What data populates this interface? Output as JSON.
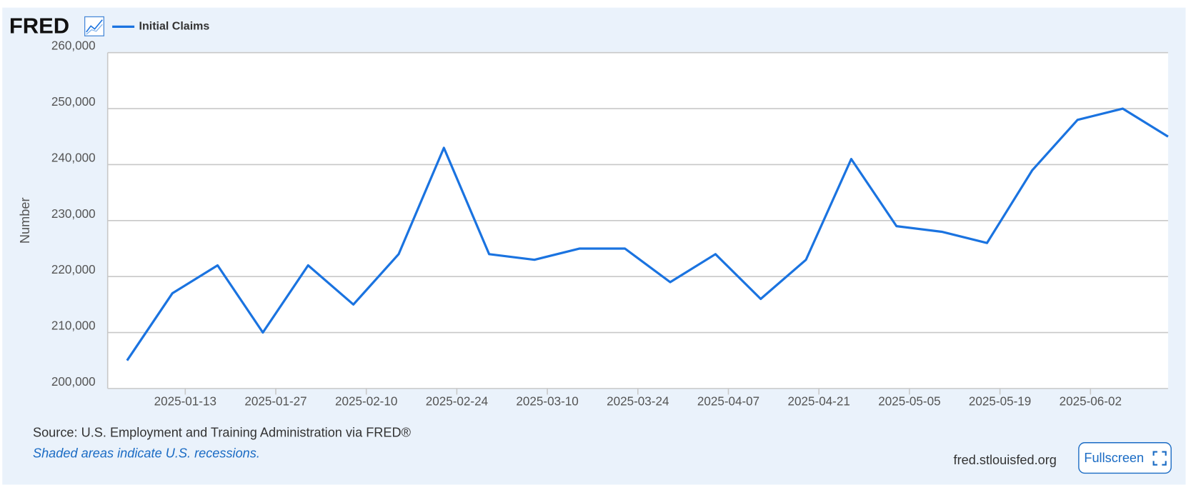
{
  "logo": "FRED",
  "site": "fred.stlouisfed.org",
  "button": "Fullscreen",
  "chart_data": {
    "type": "line",
    "y_label": "Number",
    "source": "Source: U.S. Employment and Training Administration via FRED®",
    "note": "Shaded areas indicate U.S. recessions.",
    "x": [
      "2025-01-04",
      "2025-01-11",
      "2025-01-18",
      "2025-01-25",
      "2025-02-01",
      "2025-02-08",
      "2025-02-15",
      "2025-02-22",
      "2025-03-01",
      "2025-03-08",
      "2025-03-15",
      "2025-03-22",
      "2025-03-29",
      "2025-04-05",
      "2025-04-12",
      "2025-04-19",
      "2025-04-26",
      "2025-05-03",
      "2025-05-10",
      "2025-05-17",
      "2025-05-24",
      "2025-05-31",
      "2025-06-07",
      "2025-06-14"
    ],
    "series": [
      {
        "name": "Initial Claims",
        "color": "#1a73e0",
        "values": [
          205000,
          217000,
          222000,
          210000,
          222000,
          215000,
          224000,
          243000,
          224000,
          223000,
          225000,
          225000,
          219000,
          224000,
          216000,
          223000,
          241000,
          229000,
          228000,
          226000,
          239000,
          248000,
          250000,
          245000
        ]
      }
    ],
    "xlim": [
      "2025-01-01",
      "2025-06-14"
    ],
    "xticks": [
      "2025-01-13",
      "2025-01-27",
      "2025-02-10",
      "2025-02-24",
      "2025-03-10",
      "2025-03-24",
      "2025-04-07",
      "2025-04-21",
      "2025-05-05",
      "2025-05-19",
      "2025-06-02"
    ],
    "ylim": [
      200000,
      260000
    ],
    "yticks": [
      {
        "value": 200000,
        "label": "200,000"
      },
      {
        "value": 210000,
        "label": "210,000"
      },
      {
        "value": 220000,
        "label": "220,000"
      },
      {
        "value": 230000,
        "label": "230,000"
      },
      {
        "value": 240000,
        "label": "240,000"
      },
      {
        "value": 250000,
        "label": "250,000"
      },
      {
        "value": 260000,
        "label": "260,000"
      }
    ],
    "grid": true
  }
}
